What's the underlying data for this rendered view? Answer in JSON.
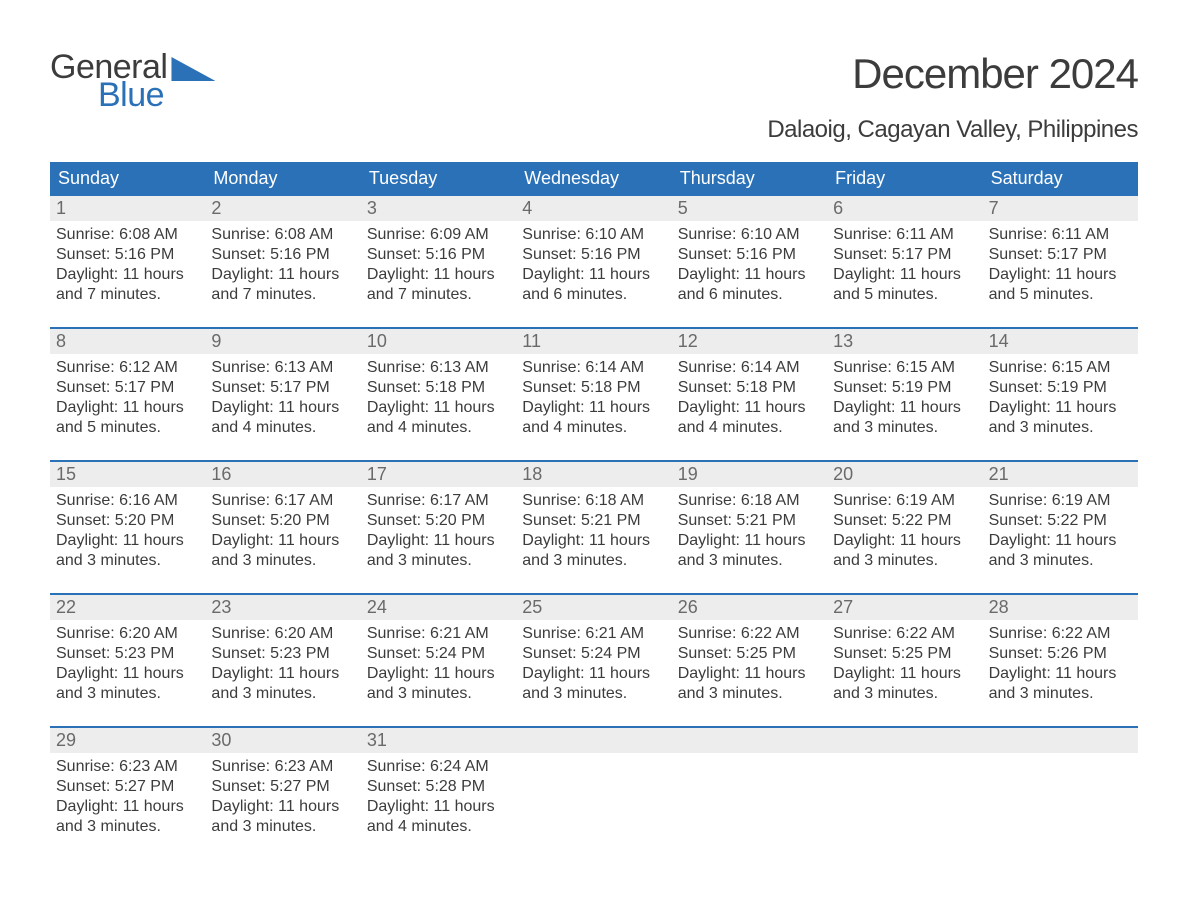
{
  "brand": {
    "part1": "General",
    "part2": "Blue",
    "accent_color": "#2b71b8"
  },
  "title": "December 2024",
  "location": "Dalaoig, Cagayan Valley, Philippines",
  "colors": {
    "header_bg": "#2b71b8",
    "header_text": "#ffffff",
    "daynum_bg": "#ededed",
    "daynum_text": "#6a6a6a",
    "body_text": "#3c3c3c",
    "rule": "#2b71b8",
    "page_bg": "#ffffff"
  },
  "typography": {
    "title_fontsize": 42,
    "location_fontsize": 24,
    "dayheader_fontsize": 18,
    "daynum_fontsize": 18,
    "cell_fontsize": 16
  },
  "day_headers": [
    "Sunday",
    "Monday",
    "Tuesday",
    "Wednesday",
    "Thursday",
    "Friday",
    "Saturday"
  ],
  "weeks": [
    [
      {
        "num": "1",
        "sunrise": "6:08 AM",
        "sunset": "5:16 PM",
        "daylight": "11 hours and 7 minutes."
      },
      {
        "num": "2",
        "sunrise": "6:08 AM",
        "sunset": "5:16 PM",
        "daylight": "11 hours and 7 minutes."
      },
      {
        "num": "3",
        "sunrise": "6:09 AM",
        "sunset": "5:16 PM",
        "daylight": "11 hours and 7 minutes."
      },
      {
        "num": "4",
        "sunrise": "6:10 AM",
        "sunset": "5:16 PM",
        "daylight": "11 hours and 6 minutes."
      },
      {
        "num": "5",
        "sunrise": "6:10 AM",
        "sunset": "5:16 PM",
        "daylight": "11 hours and 6 minutes."
      },
      {
        "num": "6",
        "sunrise": "6:11 AM",
        "sunset": "5:17 PM",
        "daylight": "11 hours and 5 minutes."
      },
      {
        "num": "7",
        "sunrise": "6:11 AM",
        "sunset": "5:17 PM",
        "daylight": "11 hours and 5 minutes."
      }
    ],
    [
      {
        "num": "8",
        "sunrise": "6:12 AM",
        "sunset": "5:17 PM",
        "daylight": "11 hours and 5 minutes."
      },
      {
        "num": "9",
        "sunrise": "6:13 AM",
        "sunset": "5:17 PM",
        "daylight": "11 hours and 4 minutes."
      },
      {
        "num": "10",
        "sunrise": "6:13 AM",
        "sunset": "5:18 PM",
        "daylight": "11 hours and 4 minutes."
      },
      {
        "num": "11",
        "sunrise": "6:14 AM",
        "sunset": "5:18 PM",
        "daylight": "11 hours and 4 minutes."
      },
      {
        "num": "12",
        "sunrise": "6:14 AM",
        "sunset": "5:18 PM",
        "daylight": "11 hours and 4 minutes."
      },
      {
        "num": "13",
        "sunrise": "6:15 AM",
        "sunset": "5:19 PM",
        "daylight": "11 hours and 3 minutes."
      },
      {
        "num": "14",
        "sunrise": "6:15 AM",
        "sunset": "5:19 PM",
        "daylight": "11 hours and 3 minutes."
      }
    ],
    [
      {
        "num": "15",
        "sunrise": "6:16 AM",
        "sunset": "5:20 PM",
        "daylight": "11 hours and 3 minutes."
      },
      {
        "num": "16",
        "sunrise": "6:17 AM",
        "sunset": "5:20 PM",
        "daylight": "11 hours and 3 minutes."
      },
      {
        "num": "17",
        "sunrise": "6:17 AM",
        "sunset": "5:20 PM",
        "daylight": "11 hours and 3 minutes."
      },
      {
        "num": "18",
        "sunrise": "6:18 AM",
        "sunset": "5:21 PM",
        "daylight": "11 hours and 3 minutes."
      },
      {
        "num": "19",
        "sunrise": "6:18 AM",
        "sunset": "5:21 PM",
        "daylight": "11 hours and 3 minutes."
      },
      {
        "num": "20",
        "sunrise": "6:19 AM",
        "sunset": "5:22 PM",
        "daylight": "11 hours and 3 minutes."
      },
      {
        "num": "21",
        "sunrise": "6:19 AM",
        "sunset": "5:22 PM",
        "daylight": "11 hours and 3 minutes."
      }
    ],
    [
      {
        "num": "22",
        "sunrise": "6:20 AM",
        "sunset": "5:23 PM",
        "daylight": "11 hours and 3 minutes."
      },
      {
        "num": "23",
        "sunrise": "6:20 AM",
        "sunset": "5:23 PM",
        "daylight": "11 hours and 3 minutes."
      },
      {
        "num": "24",
        "sunrise": "6:21 AM",
        "sunset": "5:24 PM",
        "daylight": "11 hours and 3 minutes."
      },
      {
        "num": "25",
        "sunrise": "6:21 AM",
        "sunset": "5:24 PM",
        "daylight": "11 hours and 3 minutes."
      },
      {
        "num": "26",
        "sunrise": "6:22 AM",
        "sunset": "5:25 PM",
        "daylight": "11 hours and 3 minutes."
      },
      {
        "num": "27",
        "sunrise": "6:22 AM",
        "sunset": "5:25 PM",
        "daylight": "11 hours and 3 minutes."
      },
      {
        "num": "28",
        "sunrise": "6:22 AM",
        "sunset": "5:26 PM",
        "daylight": "11 hours and 3 minutes."
      }
    ],
    [
      {
        "num": "29",
        "sunrise": "6:23 AM",
        "sunset": "5:27 PM",
        "daylight": "11 hours and 3 minutes."
      },
      {
        "num": "30",
        "sunrise": "6:23 AM",
        "sunset": "5:27 PM",
        "daylight": "11 hours and 3 minutes."
      },
      {
        "num": "31",
        "sunrise": "6:24 AM",
        "sunset": "5:28 PM",
        "daylight": "11 hours and 4 minutes."
      },
      null,
      null,
      null,
      null
    ]
  ],
  "labels": {
    "sunrise": "Sunrise:",
    "sunset": "Sunset:",
    "daylight": "Daylight:"
  }
}
